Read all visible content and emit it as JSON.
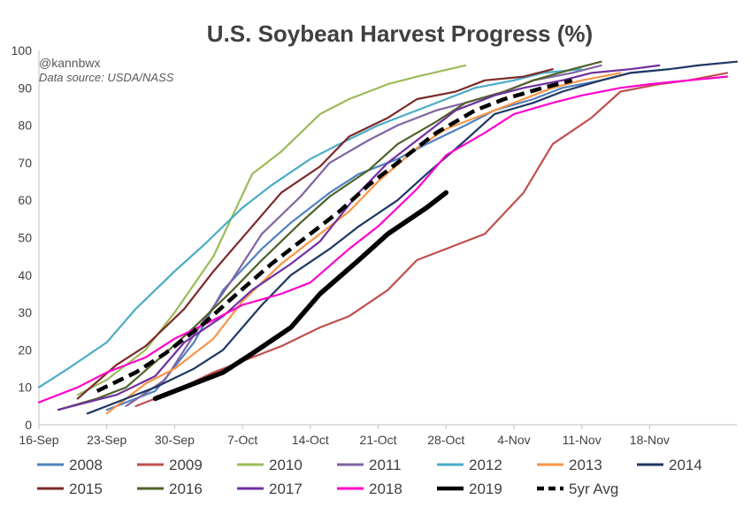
{
  "chart_data": {
    "type": "line",
    "title": "U.S. Soybean Harvest Progress (%)",
    "annotations": [
      "@kannbwx",
      "Data source: USDA/NASS"
    ],
    "xlabel": "",
    "ylabel": "",
    "x_ticks": [
      "16-Sep",
      "23-Sep",
      "30-Sep",
      "7-Oct",
      "14-Oct",
      "21-Oct",
      "28-Oct",
      "4-Nov",
      "11-Nov",
      "18-Nov"
    ],
    "xlim": [
      "16-Sep",
      "27-Nov"
    ],
    "ylim": [
      0,
      100
    ],
    "y_ticks": [
      0,
      10,
      20,
      30,
      40,
      50,
      60,
      70,
      80,
      90,
      100
    ],
    "grid": false,
    "legend_position": "bottom",
    "series": [
      {
        "name": "2008",
        "color": "#4f81bd",
        "style": "solid",
        "width": 2.2,
        "points": [
          [
            "23-Sep",
            4
          ],
          [
            "28-Sep",
            9
          ],
          [
            "2-Oct",
            22
          ],
          [
            "5-Oct",
            36
          ],
          [
            "9-Oct",
            47
          ],
          [
            "12-Oct",
            54
          ],
          [
            "16-Oct",
            62
          ],
          [
            "19-Oct",
            67
          ],
          [
            "23-Oct",
            71
          ],
          [
            "26-Oct",
            75
          ],
          [
            "30-Oct",
            80
          ],
          [
            "2-Nov",
            84
          ],
          [
            "6-Nov",
            87
          ],
          [
            "9-Nov",
            90
          ],
          [
            "13-Nov",
            92
          ],
          [
            "16-Nov",
            94
          ],
          [
            "20-Nov",
            95
          ]
        ]
      },
      {
        "name": "2009",
        "color": "#c0504d",
        "style": "solid",
        "width": 2.2,
        "points": [
          [
            "26-Sep",
            5
          ],
          [
            "30-Sep",
            9
          ],
          [
            "4-Oct",
            14
          ],
          [
            "8-Oct",
            18
          ],
          [
            "11-Oct",
            21
          ],
          [
            "15-Oct",
            26
          ],
          [
            "18-Oct",
            29
          ],
          [
            "22-Oct",
            36
          ],
          [
            "25-Oct",
            44
          ],
          [
            "29-Oct",
            48
          ],
          [
            "1-Nov",
            51
          ],
          [
            "5-Nov",
            62
          ],
          [
            "8-Nov",
            75
          ],
          [
            "12-Nov",
            82
          ],
          [
            "15-Nov",
            89
          ],
          [
            "19-Nov",
            91
          ],
          [
            "22-Nov",
            92
          ],
          [
            "26-Nov",
            94
          ]
        ]
      },
      {
        "name": "2010",
        "color": "#9bbb59",
        "style": "solid",
        "width": 2.2,
        "points": [
          [
            "20-Sep",
            8
          ],
          [
            "23-Sep",
            12
          ],
          [
            "27-Sep",
            20
          ],
          [
            "30-Sep",
            30
          ],
          [
            "4-Oct",
            45
          ],
          [
            "8-Oct",
            67
          ],
          [
            "11-Oct",
            73
          ],
          [
            "15-Oct",
            83
          ],
          [
            "18-Oct",
            87
          ],
          [
            "22-Oct",
            91
          ],
          [
            "25-Oct",
            93
          ],
          [
            "30-Oct",
            96
          ]
        ]
      },
      {
        "name": "2011",
        "color": "#8064a2",
        "style": "solid",
        "width": 2.2,
        "points": [
          [
            "25-Sep",
            5
          ],
          [
            "29-Sep",
            12
          ],
          [
            "2-Oct",
            24
          ],
          [
            "6-Oct",
            39
          ],
          [
            "9-Oct",
            51
          ],
          [
            "13-Oct",
            61
          ],
          [
            "16-Oct",
            70
          ],
          [
            "20-Oct",
            76
          ],
          [
            "23-Oct",
            80
          ],
          [
            "27-Oct",
            84
          ],
          [
            "30-Oct",
            86
          ],
          [
            "3-Nov",
            89
          ],
          [
            "6-Nov",
            92
          ],
          [
            "10-Nov",
            94
          ],
          [
            "13-Nov",
            96
          ]
        ]
      },
      {
        "name": "2012",
        "color": "#4bacc6",
        "style": "solid",
        "width": 2.2,
        "points": [
          [
            "16-Sep",
            10
          ],
          [
            "19-Sep",
            15
          ],
          [
            "23-Sep",
            22
          ],
          [
            "26-Sep",
            31
          ],
          [
            "30-Sep",
            41
          ],
          [
            "3-Oct",
            48
          ],
          [
            "7-Oct",
            58
          ],
          [
            "10-Oct",
            64
          ],
          [
            "14-Oct",
            71
          ],
          [
            "17-Oct",
            75
          ],
          [
            "21-Oct",
            80
          ],
          [
            "24-Oct",
            83
          ],
          [
            "28-Oct",
            87
          ],
          [
            "31-Oct",
            90
          ],
          [
            "4-Nov",
            92
          ],
          [
            "7-Nov",
            94
          ],
          [
            "11-Nov",
            95
          ]
        ]
      },
      {
        "name": "2013",
        "color": "#f79646",
        "style": "solid",
        "width": 2.2,
        "points": [
          [
            "23-Sep",
            3
          ],
          [
            "27-Sep",
            11
          ],
          [
            "30-Sep",
            15
          ],
          [
            "4-Oct",
            23
          ],
          [
            "7-Oct",
            33
          ],
          [
            "11-Oct",
            43
          ],
          [
            "14-Oct",
            49
          ],
          [
            "18-Oct",
            57
          ],
          [
            "21-Oct",
            65
          ],
          [
            "25-Oct",
            74
          ],
          [
            "28-Oct",
            79
          ],
          [
            "1-Nov",
            83
          ],
          [
            "4-Nov",
            86
          ],
          [
            "8-Nov",
            90
          ],
          [
            "11-Nov",
            92
          ],
          [
            "15-Nov",
            94
          ]
        ]
      },
      {
        "name": "2014",
        "color": "#1f3864",
        "style": "solid",
        "width": 2.2,
        "points": [
          [
            "21-Sep",
            3
          ],
          [
            "25-Sep",
            7
          ],
          [
            "28-Sep",
            10
          ],
          [
            "2-Oct",
            15
          ],
          [
            "5-Oct",
            20
          ],
          [
            "9-Oct",
            32
          ],
          [
            "12-Oct",
            40
          ],
          [
            "16-Oct",
            47
          ],
          [
            "19-Oct",
            53
          ],
          [
            "23-Oct",
            60
          ],
          [
            "26-Oct",
            67
          ],
          [
            "30-Oct",
            76
          ],
          [
            "2-Nov",
            83
          ],
          [
            "6-Nov",
            86
          ],
          [
            "9-Nov",
            89
          ],
          [
            "13-Nov",
            92
          ],
          [
            "16-Nov",
            94
          ],
          [
            "20-Nov",
            95
          ],
          [
            "23-Nov",
            96
          ],
          [
            "27-Nov",
            97
          ]
        ]
      },
      {
        "name": "2015",
        "color": "#7b2a2a",
        "style": "solid",
        "width": 2.2,
        "points": [
          [
            "20-Sep",
            7
          ],
          [
            "24-Sep",
            16
          ],
          [
            "27-Sep",
            21
          ],
          [
            "1-Oct",
            31
          ],
          [
            "4-Oct",
            41
          ],
          [
            "8-Oct",
            53
          ],
          [
            "11-Oct",
            62
          ],
          [
            "15-Oct",
            69
          ],
          [
            "18-Oct",
            77
          ],
          [
            "22-Oct",
            82
          ],
          [
            "25-Oct",
            87
          ],
          [
            "29-Oct",
            89
          ],
          [
            "1-Nov",
            92
          ],
          [
            "5-Nov",
            93
          ],
          [
            "8-Nov",
            95
          ]
        ]
      },
      {
        "name": "2016",
        "color": "#4f6228",
        "style": "solid",
        "width": 2.2,
        "points": [
          [
            "18-Sep",
            4
          ],
          [
            "22-Sep",
            7
          ],
          [
            "25-Sep",
            10
          ],
          [
            "29-Sep",
            19
          ],
          [
            "2-Oct",
            26
          ],
          [
            "6-Oct",
            36
          ],
          [
            "9-Oct",
            44
          ],
          [
            "13-Oct",
            54
          ],
          [
            "16-Oct",
            61
          ],
          [
            "20-Oct",
            68
          ],
          [
            "23-Oct",
            75
          ],
          [
            "27-Oct",
            81
          ],
          [
            "30-Oct",
            86
          ],
          [
            "3-Nov",
            89
          ],
          [
            "6-Nov",
            92
          ],
          [
            "10-Nov",
            95
          ],
          [
            "13-Nov",
            97
          ]
        ]
      },
      {
        "name": "2017",
        "color": "#7030a0",
        "style": "solid",
        "width": 2.2,
        "points": [
          [
            "18-Sep",
            4
          ],
          [
            "21-Sep",
            6
          ],
          [
            "24-Sep",
            8
          ],
          [
            "28-Sep",
            13
          ],
          [
            "1-Oct",
            22
          ],
          [
            "5-Oct",
            29
          ],
          [
            "8-Oct",
            36
          ],
          [
            "12-Oct",
            43
          ],
          [
            "15-Oct",
            49
          ],
          [
            "19-Oct",
            62
          ],
          [
            "22-Oct",
            70
          ],
          [
            "26-Oct",
            78
          ],
          [
            "29-Oct",
            84
          ],
          [
            "2-Nov",
            88
          ],
          [
            "5-Nov",
            90
          ],
          [
            "9-Nov",
            92
          ],
          [
            "12-Nov",
            94
          ],
          [
            "16-Nov",
            95
          ],
          [
            "19-Nov",
            96
          ]
        ]
      },
      {
        "name": "2018",
        "color": "#ff00cc",
        "style": "solid",
        "width": 2.2,
        "points": [
          [
            "16-Sep",
            6
          ],
          [
            "20-Sep",
            10
          ],
          [
            "23-Sep",
            14
          ],
          [
            "27-Sep",
            18
          ],
          [
            "30-Sep",
            23
          ],
          [
            "4-Oct",
            28
          ],
          [
            "7-Oct",
            32
          ],
          [
            "11-Oct",
            35
          ],
          [
            "14-Oct",
            38
          ],
          [
            "18-Oct",
            47
          ],
          [
            "21-Oct",
            53
          ],
          [
            "25-Oct",
            63
          ],
          [
            "28-Oct",
            72
          ],
          [
            "1-Nov",
            78
          ],
          [
            "4-Nov",
            83
          ],
          [
            "8-Nov",
            86
          ],
          [
            "11-Nov",
            88
          ],
          [
            "15-Nov",
            90
          ],
          [
            "18-Nov",
            91
          ],
          [
            "22-Nov",
            92
          ],
          [
            "26-Nov",
            93
          ]
        ]
      },
      {
        "name": "2019",
        "color": "#000000",
        "style": "solid",
        "width": 5.5,
        "points": [
          [
            "28-Sep",
            7
          ],
          [
            "1-Oct",
            10
          ],
          [
            "5-Oct",
            14
          ],
          [
            "8-Oct",
            19
          ],
          [
            "12-Oct",
            26
          ],
          [
            "15-Oct",
            35
          ],
          [
            "19-Oct",
            44
          ],
          [
            "22-Oct",
            51
          ],
          [
            "26-Oct",
            58
          ],
          [
            "28-Oct",
            62
          ]
        ]
      },
      {
        "name": "5yr Avg",
        "color": "#000000",
        "style": "dashed",
        "width": 4.5,
        "points": [
          [
            "22-Sep",
            9
          ],
          [
            "26-Sep",
            14
          ],
          [
            "29-Sep",
            19
          ],
          [
            "3-Oct",
            27
          ],
          [
            "6-Oct",
            34
          ],
          [
            "10-Oct",
            43
          ],
          [
            "13-Oct",
            49
          ],
          [
            "17-Oct",
            57
          ],
          [
            "20-Oct",
            64
          ],
          [
            "24-Oct",
            72
          ],
          [
            "27-Oct",
            78
          ],
          [
            "31-Oct",
            84
          ],
          [
            "3-Nov",
            87
          ],
          [
            "7-Nov",
            90
          ],
          [
            "10-Nov",
            92
          ]
        ]
      }
    ]
  }
}
